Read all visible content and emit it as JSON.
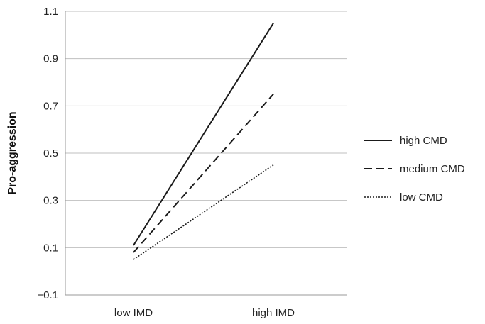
{
  "chart_data": {
    "type": "line",
    "title": "",
    "xlabel": "",
    "ylabel": "Pro-aggression",
    "categories": [
      "low IMD",
      "high IMD"
    ],
    "ylim": [
      -0.1,
      1.1
    ],
    "yticks": [
      "1.1",
      "0.9",
      "0.7",
      "0.5",
      "0.3",
      "0.1",
      "−0.1"
    ],
    "ytick_values": [
      1.1,
      0.9,
      0.7,
      0.5,
      0.3,
      0.1,
      -0.1
    ],
    "grid": true,
    "legend_position": "right",
    "series": [
      {
        "name": "high CMD",
        "values": [
          0.11,
          1.05
        ],
        "style": "solid",
        "color": "#1a1a1a"
      },
      {
        "name": "medium CMD",
        "values": [
          0.08,
          0.75
        ],
        "style": "dashed",
        "color": "#1a1a1a"
      },
      {
        "name": "low CMD",
        "values": [
          0.05,
          0.45
        ],
        "style": "dotted",
        "color": "#1a1a1a"
      }
    ]
  }
}
